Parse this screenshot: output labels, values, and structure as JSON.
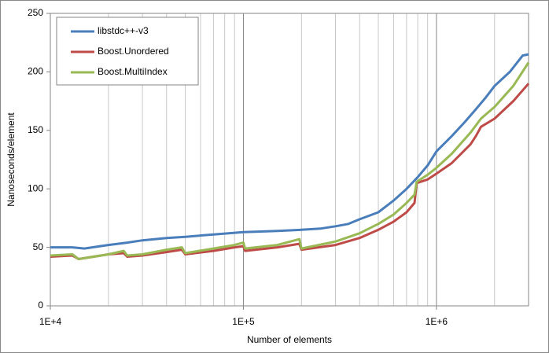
{
  "chart_data": {
    "type": "line",
    "x_label": "Number of elements",
    "y_label": "Nanoseconds/element",
    "xlog": true,
    "xlim": [
      10000,
      3000000
    ],
    "xticks": [
      {
        "value": 10000,
        "label": "1E+4"
      },
      {
        "value": 100000,
        "label": "1E+5"
      },
      {
        "value": 1000000,
        "label": "1E+6"
      }
    ],
    "ylim": [
      0,
      250
    ],
    "yticks": [
      0,
      50,
      100,
      150,
      200,
      250
    ],
    "minor_grid": true,
    "legend": "top-left",
    "series": [
      {
        "name": "libstdc++-v3",
        "color": "#4a7ebb",
        "x": [
          10000,
          13000,
          15000,
          20000,
          25000,
          30000,
          40000,
          50000,
          70000,
          100000,
          150000,
          200000,
          250000,
          300000,
          350000,
          400000,
          500000,
          600000,
          700000,
          800000,
          900000,
          1000000,
          1200000,
          1400000,
          1600000,
          1800000,
          2000000,
          2400000,
          2800000,
          3000000
        ],
        "values": [
          50,
          50,
          49,
          52,
          54,
          56,
          58,
          59,
          61,
          63,
          64,
          65,
          66,
          68,
          70,
          74,
          80,
          90,
          100,
          110,
          120,
          132,
          145,
          157,
          168,
          178,
          188,
          200,
          214,
          215
        ]
      },
      {
        "name": "Boost.Unordered",
        "color": "#be4b48",
        "x": [
          10000,
          13000,
          14000,
          20000,
          24000,
          25000,
          30000,
          40000,
          48000,
          50000,
          70000,
          90000,
          100000,
          102000,
          150000,
          195000,
          200000,
          300000,
          400000,
          500000,
          600000,
          700000,
          770000,
          790000,
          900000,
          1000000,
          1200000,
          1500000,
          1600000,
          1700000,
          2000000,
          2500000,
          3000000
        ],
        "values": [
          42,
          43,
          40,
          44,
          45,
          42,
          43,
          46,
          48,
          44,
          47,
          50,
          51,
          47,
          50,
          53,
          48,
          52,
          58,
          65,
          72,
          80,
          88,
          105,
          108,
          113,
          122,
          138,
          145,
          153,
          160,
          175,
          190
        ]
      },
      {
        "name": "Boost.MultiIndex",
        "color": "#98b954",
        "x": [
          10000,
          13000,
          14000,
          20000,
          24000,
          25000,
          30000,
          40000,
          48000,
          50000,
          70000,
          90000,
          100000,
          102000,
          150000,
          195000,
          200000,
          300000,
          400000,
          500000,
          600000,
          700000,
          770000,
          790000,
          900000,
          1000000,
          1200000,
          1500000,
          1700000,
          2000000,
          2500000,
          3000000
        ],
        "values": [
          43,
          44,
          40,
          44,
          47,
          43,
          44,
          48,
          50,
          45,
          49,
          52,
          54,
          49,
          52,
          57,
          49,
          55,
          62,
          70,
          78,
          88,
          95,
          106,
          112,
          118,
          130,
          148,
          160,
          170,
          188,
          208
        ]
      }
    ]
  }
}
